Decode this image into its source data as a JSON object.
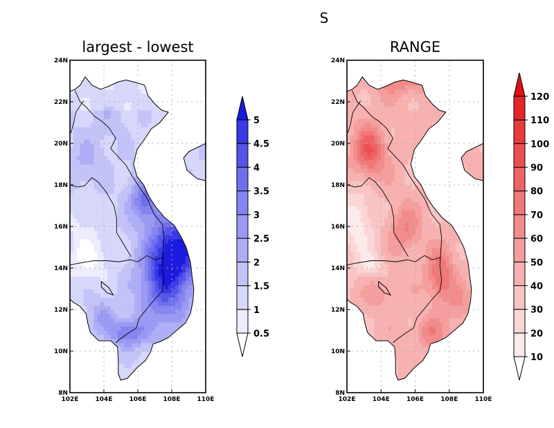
{
  "figure": {
    "suptitle": "S"
  },
  "colors": {
    "land_outline": "#000000",
    "grid": "#b0b0b0",
    "sea": "#ffffff"
  },
  "chart_data": [
    {
      "type": "heatmap",
      "title": "largest - lowest",
      "xlabel": "",
      "ylabel": "",
      "xlim": [
        102,
        110
      ],
      "ylim": [
        8,
        24
      ],
      "x_ticks": [
        "102E",
        "104E",
        "106E",
        "108E",
        "110E"
      ],
      "y_ticks": [
        "8N",
        "10N",
        "12N",
        "14N",
        "16N",
        "18N",
        "20N",
        "22N",
        "24N"
      ],
      "grid": true,
      "colormap": "blue",
      "colorbar": {
        "levels": [
          "0.5",
          "1",
          "1.5",
          "2",
          "2.5",
          "3",
          "3.5",
          "4",
          "4.5",
          "5"
        ],
        "colors": [
          "#ffffff",
          "#ececfd",
          "#d7d7fb",
          "#c3c3f8",
          "#aeaef6",
          "#9a9af4",
          "#8585f1",
          "#6f6fee",
          "#5555ea",
          "#3939e6",
          "#1b1be0"
        ],
        "extend": "both"
      }
    },
    {
      "type": "heatmap",
      "title": "RANGE",
      "xlabel": "",
      "ylabel": "",
      "xlim": [
        102,
        110
      ],
      "ylim": [
        8,
        24
      ],
      "x_ticks": [
        "102E",
        "104E",
        "106E",
        "108E",
        "110E"
      ],
      "y_ticks": [
        "8N",
        "10N",
        "12N",
        "14N",
        "16N",
        "18N",
        "20N",
        "22N",
        "24N"
      ],
      "grid": true,
      "colormap": "red",
      "colorbar": {
        "levels": [
          "10",
          "20",
          "30",
          "40",
          "50",
          "60",
          "70",
          "80",
          "90",
          "100",
          "110",
          "120"
        ],
        "colors": [
          "#ffffff",
          "#fdeaea",
          "#fbd6d6",
          "#f9c4c4",
          "#f7b1b1",
          "#f59e9e",
          "#f28b8b",
          "#f07878",
          "#ee6464",
          "#eb5050",
          "#e83b3b",
          "#e52626",
          "#e01010"
        ],
        "extend": "both"
      }
    }
  ]
}
